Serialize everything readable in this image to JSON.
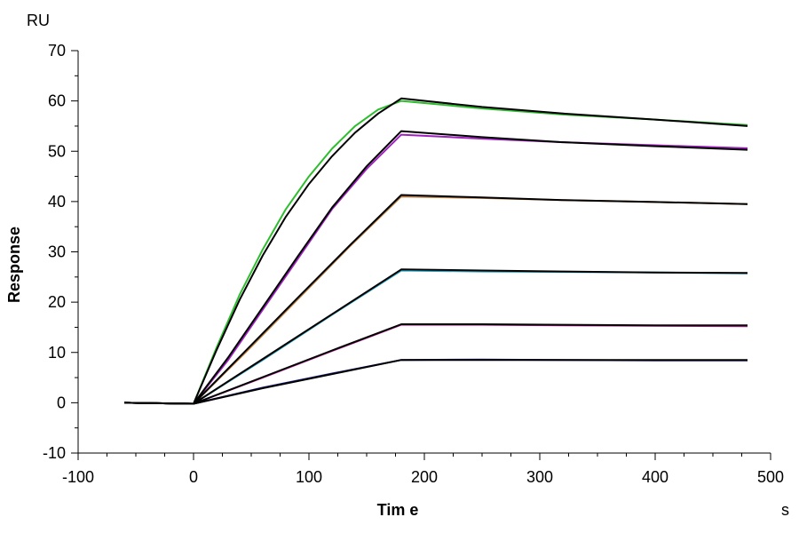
{
  "chart_data": {
    "type": "line",
    "title": "",
    "xlabel": "Tim e",
    "ylabel": "Response",
    "x_unit": "s",
    "y_unit": "RU",
    "xlim": [
      -100,
      500
    ],
    "ylim": [
      -10,
      70
    ],
    "x_ticks": [
      -100,
      0,
      100,
      200,
      300,
      400,
      500
    ],
    "y_ticks": [
      -10,
      0,
      10,
      20,
      30,
      40,
      50,
      60,
      70
    ],
    "grid": false,
    "legend": "none",
    "series": [
      {
        "color": "#2ebd2e",
        "points": [
          [
            -60,
            0
          ],
          [
            0,
            -0.2
          ],
          [
            20,
            11
          ],
          [
            40,
            21.5
          ],
          [
            60,
            30.5
          ],
          [
            80,
            38.5
          ],
          [
            100,
            45
          ],
          [
            120,
            50.5
          ],
          [
            140,
            55
          ],
          [
            160,
            58.3
          ],
          [
            180,
            60
          ],
          [
            250,
            58.5
          ],
          [
            320,
            57.3
          ],
          [
            400,
            56.3
          ],
          [
            480,
            55.2
          ]
        ]
      },
      {
        "color": "#a020c0",
        "points": [
          [
            -60,
            0
          ],
          [
            0,
            -0.2
          ],
          [
            30,
            8.5
          ],
          [
            60,
            18.5
          ],
          [
            90,
            28.5
          ],
          [
            120,
            38.5
          ],
          [
            150,
            46.5
          ],
          [
            180,
            53.3
          ],
          [
            250,
            52.5
          ],
          [
            320,
            51.8
          ],
          [
            400,
            51.2
          ],
          [
            480,
            50.6
          ]
        ]
      },
      {
        "color": "#c08040",
        "points": [
          [
            -60,
            0
          ],
          [
            0,
            -0.2
          ],
          [
            45,
            10
          ],
          [
            90,
            20.5
          ],
          [
            135,
            31
          ],
          [
            180,
            41
          ],
          [
            250,
            40.7
          ],
          [
            320,
            40.3
          ],
          [
            400,
            39.9
          ],
          [
            480,
            39.5
          ]
        ]
      },
      {
        "color": "#20a0c0",
        "points": [
          [
            -60,
            0
          ],
          [
            0,
            -0.2
          ],
          [
            60,
            8.5
          ],
          [
            120,
            17.5
          ],
          [
            180,
            26.3
          ],
          [
            250,
            26.1
          ],
          [
            320,
            26.0
          ],
          [
            400,
            25.9
          ],
          [
            480,
            25.7
          ]
        ]
      },
      {
        "color": "#c020a0",
        "points": [
          [
            -60,
            0
          ],
          [
            0,
            -0.2
          ],
          [
            60,
            5
          ],
          [
            120,
            10.3
          ],
          [
            180,
            15.5
          ],
          [
            250,
            15.5
          ],
          [
            320,
            15.4
          ],
          [
            400,
            15.3
          ],
          [
            480,
            15.2
          ]
        ]
      },
      {
        "color": "#2020a0",
        "points": [
          [
            -60,
            0
          ],
          [
            0,
            -0.2
          ],
          [
            60,
            3
          ],
          [
            120,
            5.8
          ],
          [
            180,
            8.5
          ],
          [
            250,
            8.6
          ],
          [
            320,
            8.5
          ],
          [
            400,
            8.4
          ],
          [
            480,
            8.4
          ]
        ]
      }
    ],
    "fits": [
      {
        "color": "#000000",
        "points": [
          [
            -60,
            0
          ],
          [
            0,
            -0.2
          ],
          [
            20,
            10.5
          ],
          [
            40,
            20.5
          ],
          [
            60,
            29.3
          ],
          [
            80,
            37
          ],
          [
            100,
            43.5
          ],
          [
            120,
            49
          ],
          [
            140,
            53.7
          ],
          [
            160,
            57.5
          ],
          [
            180,
            60.5
          ],
          [
            250,
            58.8
          ],
          [
            320,
            57.5
          ],
          [
            400,
            56.3
          ],
          [
            480,
            55.0
          ]
        ]
      },
      {
        "color": "#000000",
        "points": [
          [
            -60,
            0
          ],
          [
            0,
            -0.2
          ],
          [
            30,
            9
          ],
          [
            60,
            19
          ],
          [
            90,
            29
          ],
          [
            120,
            38.8
          ],
          [
            150,
            47
          ],
          [
            180,
            54
          ],
          [
            250,
            52.8
          ],
          [
            320,
            51.8
          ],
          [
            400,
            51.0
          ],
          [
            480,
            50.3
          ]
        ]
      },
      {
        "color": "#000000",
        "points": [
          [
            -60,
            0
          ],
          [
            0,
            -0.2
          ],
          [
            45,
            10.3
          ],
          [
            90,
            20.8
          ],
          [
            135,
            31.2
          ],
          [
            180,
            41.3
          ],
          [
            250,
            40.8
          ],
          [
            320,
            40.3
          ],
          [
            400,
            39.9
          ],
          [
            480,
            39.5
          ]
        ]
      },
      {
        "color": "#000000",
        "points": [
          [
            -60,
            0
          ],
          [
            0,
            -0.2
          ],
          [
            60,
            8.7
          ],
          [
            120,
            17.6
          ],
          [
            180,
            26.5
          ],
          [
            250,
            26.3
          ],
          [
            320,
            26.1
          ],
          [
            400,
            25.9
          ],
          [
            480,
            25.8
          ]
        ]
      },
      {
        "color": "#000000",
        "points": [
          [
            -60,
            0
          ],
          [
            0,
            -0.2
          ],
          [
            60,
            5.1
          ],
          [
            120,
            10.4
          ],
          [
            180,
            15.6
          ],
          [
            250,
            15.6
          ],
          [
            320,
            15.5
          ],
          [
            400,
            15.4
          ],
          [
            480,
            15.4
          ]
        ]
      },
      {
        "color": "#000000",
        "points": [
          [
            -60,
            0
          ],
          [
            0,
            -0.2
          ],
          [
            60,
            2.9
          ],
          [
            120,
            5.7
          ],
          [
            180,
            8.5
          ],
          [
            250,
            8.5
          ],
          [
            320,
            8.5
          ],
          [
            400,
            8.5
          ],
          [
            480,
            8.5
          ]
        ]
      }
    ]
  }
}
